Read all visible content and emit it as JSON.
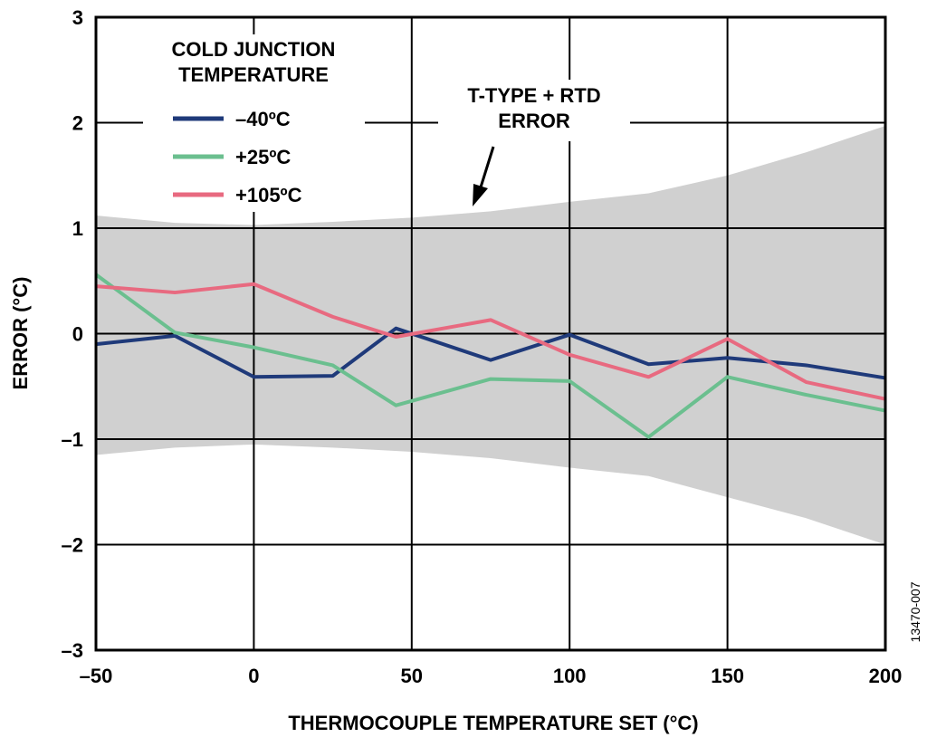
{
  "figure_id": "13470-007",
  "chart_data": {
    "type": "line",
    "title": "",
    "xlabel": "THERMOCOUPLE TEMPERATURE SET (°C)",
    "ylabel": "ERROR (°C)",
    "xlim": [
      -50,
      200
    ],
    "ylim": [
      -3,
      3
    ],
    "xticks": [
      -50,
      0,
      50,
      100,
      150,
      200
    ],
    "yticks": [
      3,
      2,
      1,
      0,
      -1,
      -2,
      -3
    ],
    "xtick_labels": [
      "–50",
      "0",
      "50",
      "100",
      "150",
      "200"
    ],
    "ytick_labels": [
      "3",
      "2",
      "1",
      "0",
      "–1",
      "–2",
      "–3"
    ],
    "grid": true,
    "legend_title": [
      "COLD JUNCTION",
      "TEMPERATURE"
    ],
    "legend_position": "top-left",
    "x": [
      -50,
      -25,
      0,
      25,
      45,
      75,
      100,
      125,
      150,
      175,
      200
    ],
    "series": [
      {
        "name": "–40ºC",
        "color": "#1f3a7a",
        "values": [
          -0.1,
          -0.02,
          -0.41,
          -0.4,
          0.05,
          -0.25,
          -0.01,
          -0.29,
          -0.23,
          -0.3,
          -0.42
        ]
      },
      {
        "name": "+25ºC",
        "color": "#6bbf8f",
        "values": [
          0.56,
          0.01,
          -0.13,
          -0.3,
          -0.68,
          -0.43,
          -0.45,
          -0.98,
          -0.41,
          -0.58,
          -0.73
        ]
      },
      {
        "name": "+105ºC",
        "color": "#e86a80",
        "values": [
          0.45,
          0.39,
          0.47,
          0.16,
          -0.03,
          0.13,
          -0.2,
          -0.41,
          -0.05,
          -0.46,
          -0.62
        ]
      }
    ],
    "error_band": {
      "label": [
        "T-TYPE + RTD",
        "ERROR"
      ],
      "color": "#d0d0d0",
      "x": [
        -50,
        -25,
        0,
        25,
        50,
        75,
        100,
        125,
        150,
        175,
        200
      ],
      "upper": [
        1.12,
        1.05,
        1.03,
        1.06,
        1.1,
        1.16,
        1.25,
        1.33,
        1.5,
        1.72,
        1.97
      ],
      "lower": [
        -1.15,
        -1.08,
        -1.05,
        -1.08,
        -1.12,
        -1.18,
        -1.27,
        -1.35,
        -1.55,
        -1.75,
        -2.0
      ]
    }
  }
}
